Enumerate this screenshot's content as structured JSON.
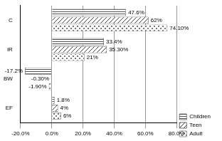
{
  "chart_data": {
    "type": "bar",
    "orientation": "horizontal",
    "categories": [
      "C",
      "IR",
      "BW",
      "EF"
    ],
    "series": [
      {
        "name": "Children",
        "color": "#555555",
        "values": [
          47.6,
          33.4,
          -17.2,
          1.8
        ],
        "value_labels": [
          "47.6%",
          "33.4%",
          "-17.2%",
          "1.8%"
        ]
      },
      {
        "name": "Teen",
        "color": "#444444",
        "values": [
          62,
          35.3,
          -0.3,
          4
        ],
        "value_labels": [
          "62%",
          "35.30%",
          "-0.30%",
          "4%"
        ]
      },
      {
        "name": "Adult",
        "color": "#777777",
        "values": [
          74.1,
          21,
          -1.9,
          6
        ],
        "value_labels": [
          "74.10%",
          "21%",
          "-1.90%",
          "6%"
        ]
      }
    ],
    "xlim": [
      -20,
      80
    ],
    "xticks": [
      {
        "value": -20,
        "label": "-20.0%"
      },
      {
        "value": 0,
        "label": "0.0%"
      },
      {
        "value": 20,
        "label": "20.0%"
      },
      {
        "value": 40,
        "label": "40.0%"
      },
      {
        "value": 60,
        "label": "60.0%"
      },
      {
        "value": 80,
        "label": "80.0%"
      }
    ],
    "grid": true,
    "legend": "right",
    "data_labels": true
  }
}
